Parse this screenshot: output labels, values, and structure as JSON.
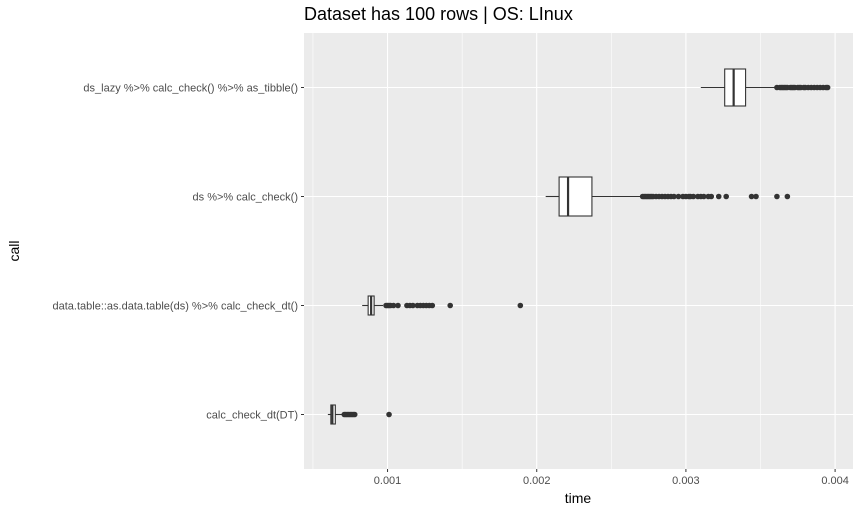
{
  "chart_data": {
    "type": "boxplot",
    "orientation": "horizontal",
    "title": "Dataset has 100 rows | OS: LInux",
    "xlabel": "time",
    "ylabel": "call",
    "xlim": [
      0.00044,
      0.00412
    ],
    "x_ticks": [
      {
        "value": 0.001,
        "label": "0.001"
      },
      {
        "value": 0.002,
        "label": "0.002"
      },
      {
        "value": 0.003,
        "label": "0.003"
      },
      {
        "value": 0.004,
        "label": "0.004"
      }
    ],
    "grid": true,
    "categories": [
      "ds_lazy %>% calc_check() %>% as_tibble()",
      "ds %>% calc_check()",
      "data.table::as.data.table(ds) %>% calc_check_dt()",
      "calc_check_dt(DT)"
    ],
    "boxes": [
      {
        "whisker_low": 0.0031,
        "q1": 0.00326,
        "median": 0.00332,
        "q3": 0.0034,
        "whisker_high": 0.0036,
        "outliers": [
          0.00361,
          0.00363,
          0.00364,
          0.00365,
          0.00366,
          0.00367,
          0.00368,
          0.0037,
          0.00371,
          0.00372,
          0.00373,
          0.00375,
          0.00376,
          0.00377,
          0.00379,
          0.0038,
          0.00382,
          0.00384,
          0.00386,
          0.00388,
          0.0039,
          0.00392,
          0.00394,
          0.00395
        ]
      },
      {
        "whisker_low": 0.00206,
        "q1": 0.00215,
        "median": 0.00221,
        "q3": 0.00237,
        "whisker_high": 0.0027,
        "outliers": [
          0.00271,
          0.00272,
          0.00273,
          0.00274,
          0.00275,
          0.00276,
          0.00277,
          0.00278,
          0.0028,
          0.00282,
          0.00284,
          0.00286,
          0.00288,
          0.0029,
          0.00292,
          0.00295,
          0.00298,
          0.003,
          0.00302,
          0.00303,
          0.00305,
          0.00308,
          0.0031,
          0.00312,
          0.00315,
          0.00317,
          0.00322,
          0.00327,
          0.00344,
          0.00347,
          0.00361,
          0.00368
        ]
      },
      {
        "whisker_low": 0.00083,
        "q1": 0.00087,
        "median": 0.00089,
        "q3": 0.00091,
        "whisker_high": 0.00097,
        "outliers": [
          0.00099,
          0.001,
          0.00101,
          0.00102,
          0.00104,
          0.00107,
          0.00113,
          0.00115,
          0.00117,
          0.0012,
          0.00122,
          0.00124,
          0.00126,
          0.00128,
          0.0013,
          0.00142,
          0.00189
        ]
      },
      {
        "whisker_low": 0.0006,
        "q1": 0.00062,
        "median": 0.00063,
        "q3": 0.00065,
        "whisker_high": 0.0007,
        "outliers": [
          0.00071,
          0.00072,
          0.00073,
          0.00074,
          0.00075,
          0.00076,
          0.00077,
          0.00078,
          0.00101
        ]
      }
    ]
  }
}
